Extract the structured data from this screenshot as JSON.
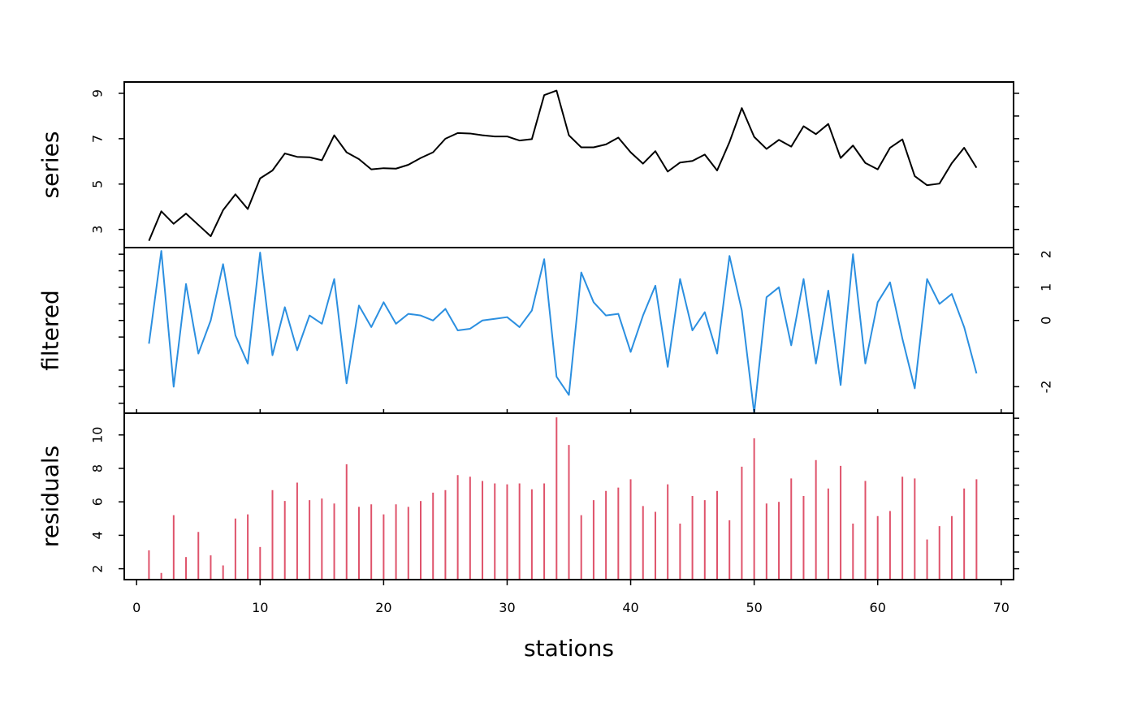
{
  "chart_data": {
    "type": "line",
    "xlabel": "stations",
    "xlim": [
      -1,
      71
    ],
    "x_ticks": [
      0,
      10,
      20,
      30,
      40,
      50,
      60,
      70
    ],
    "x": [
      1,
      2,
      3,
      4,
      5,
      6,
      7,
      8,
      9,
      10,
      11,
      12,
      13,
      14,
      15,
      16,
      17,
      18,
      19,
      20,
      21,
      22,
      23,
      24,
      25,
      26,
      27,
      28,
      29,
      30,
      31,
      32,
      33,
      34,
      35,
      36,
      37,
      38,
      39,
      40,
      41,
      42,
      43,
      44,
      45,
      46,
      47,
      48,
      49,
      50,
      51,
      52,
      53,
      54,
      55,
      56,
      57,
      58,
      59,
      60,
      61,
      62,
      63,
      64,
      65,
      66,
      67,
      68
    ],
    "panels": [
      {
        "name": "series",
        "ylabel": "series",
        "type": "line",
        "color": "#000000",
        "ylim": [
          2.2,
          9.5
        ],
        "y_ticks": [
          3,
          5,
          7,
          9
        ],
        "tick_side": "left",
        "values": [
          2.5,
          3.8,
          3.25,
          3.7,
          3.2,
          2.7,
          3.85,
          4.55,
          3.9,
          5.25,
          5.6,
          6.35,
          6.2,
          6.18,
          6.05,
          7.15,
          6.4,
          6.1,
          5.65,
          5.7,
          5.68,
          5.85,
          6.15,
          6.4,
          7.0,
          7.25,
          7.23,
          7.15,
          7.1,
          7.1,
          6.92,
          6.98,
          8.92,
          9.12,
          7.15,
          6.62,
          6.62,
          6.75,
          7.05,
          6.4,
          5.9,
          6.45,
          5.55,
          5.95,
          6.02,
          6.3,
          5.6,
          6.85,
          8.35,
          7.08,
          6.55,
          6.95,
          6.65,
          7.55,
          7.2,
          7.65,
          6.15,
          6.7,
          5.93,
          5.65,
          6.6,
          6.97,
          5.35,
          4.95,
          5.02,
          5.92,
          6.6,
          5.72
        ]
      },
      {
        "name": "filtered",
        "ylabel": "filtered",
        "type": "line",
        "color": "#2b8fe0",
        "ylim": [
          -2.8,
          2.2
        ],
        "y_ticks": [
          -2,
          0,
          1,
          2
        ],
        "y_tick_labels": [
          "-2",
          "0",
          "1",
          "2"
        ],
        "tick_side": "right",
        "values": [
          -0.7,
          2.1,
          -2.0,
          1.1,
          -1.0,
          0.0,
          1.7,
          -0.45,
          -1.3,
          2.05,
          -1.05,
          0.4,
          -0.9,
          0.15,
          -0.1,
          1.25,
          -1.9,
          0.45,
          -0.2,
          0.55,
          -0.1,
          0.2,
          0.15,
          0.0,
          0.35,
          -0.3,
          -0.25,
          0.0,
          0.05,
          0.1,
          -0.2,
          0.3,
          1.85,
          -1.7,
          -2.25,
          1.45,
          0.55,
          0.15,
          0.2,
          -0.95,
          0.15,
          1.05,
          -1.4,
          1.25,
          -0.3,
          0.25,
          -1.0,
          1.95,
          0.3,
          -2.8,
          0.7,
          1.0,
          -0.75,
          1.25,
          -1.3,
          0.9,
          -1.95,
          2.0,
          -1.3,
          0.55,
          1.15,
          -0.55,
          -2.05,
          1.25,
          0.5,
          0.8,
          -0.2,
          -1.6
        ]
      },
      {
        "name": "residuals",
        "ylabel": "residuals",
        "type": "bar",
        "color": "#df536b",
        "ylim": [
          1.35,
          11.3
        ],
        "y_ticks": [
          2,
          4,
          6,
          8,
          10
        ],
        "tick_side": "left",
        "values": [
          3.1,
          1.75,
          5.2,
          2.7,
          4.2,
          2.8,
          2.2,
          5.0,
          5.25,
          3.3,
          6.7,
          6.05,
          7.15,
          6.1,
          6.2,
          5.9,
          8.25,
          5.7,
          5.85,
          5.25,
          5.85,
          5.7,
          6.05,
          6.55,
          6.7,
          7.6,
          7.5,
          7.25,
          7.1,
          7.05,
          7.1,
          6.75,
          7.1,
          11.05,
          9.4,
          5.2,
          6.1,
          6.65,
          6.85,
          7.35,
          5.75,
          5.4,
          7.05,
          4.7,
          6.35,
          6.1,
          6.65,
          4.9,
          8.1,
          9.8,
          5.9,
          6.0,
          7.4,
          6.35,
          8.5,
          6.8,
          8.15,
          4.7,
          7.25,
          5.15,
          5.45,
          7.5,
          7.4,
          3.75,
          4.55,
          5.15,
          6.8,
          7.35
        ]
      }
    ]
  }
}
